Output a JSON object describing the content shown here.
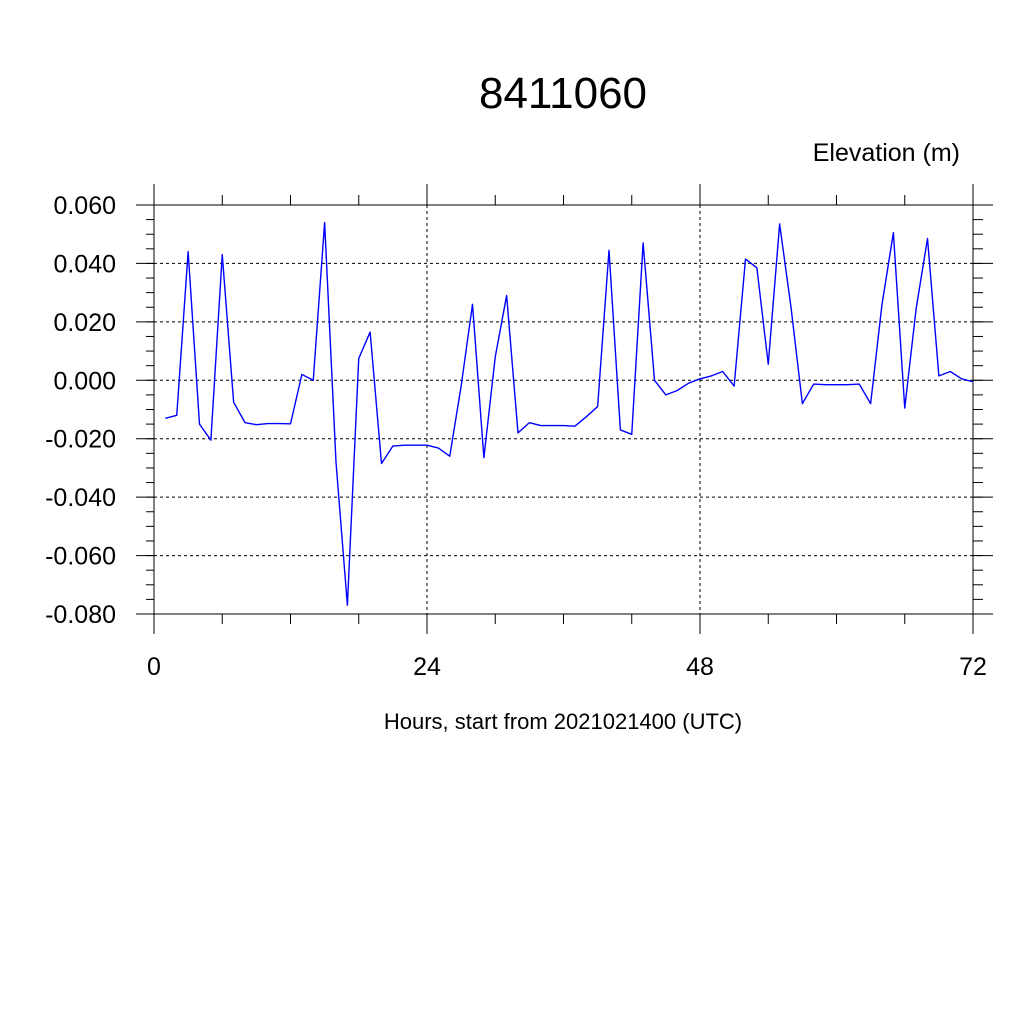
{
  "chart_data": {
    "type": "line",
    "title": "8411060",
    "ylabel": "Elevation (m)",
    "xlabel": "Hours, start from 2021021400 (UTC)",
    "xlim": [
      0,
      72
    ],
    "ylim": [
      -0.08,
      0.06
    ],
    "xticks": [
      0,
      24,
      48,
      72
    ],
    "xtick_labels": [
      "0",
      "24",
      "48",
      "72"
    ],
    "yticks": [
      -0.08,
      -0.06,
      -0.04,
      -0.02,
      0.0,
      0.02,
      0.04,
      0.06
    ],
    "ytick_labels": [
      "-0.080",
      "-0.060",
      "-0.040",
      "-0.020",
      "0.000",
      "0.020",
      "0.040",
      "0.060"
    ],
    "grid": true,
    "colors": {
      "line": "#0000ff",
      "grid": "#000000",
      "axis": "#000000"
    },
    "series": [
      {
        "x": [
          1,
          2,
          3,
          4,
          5,
          6,
          7,
          8,
          9,
          10,
          11,
          12,
          13,
          14,
          15,
          16,
          17,
          18,
          19,
          20,
          21,
          22,
          23,
          24,
          25,
          26,
          27,
          28,
          29,
          30,
          31,
          32,
          33,
          34,
          35,
          36,
          37,
          38,
          39,
          40,
          41,
          42,
          43,
          44,
          45,
          46,
          47,
          48,
          49,
          50,
          51,
          52,
          53,
          54,
          55,
          56,
          57,
          58,
          59,
          60,
          61,
          62,
          63,
          64,
          65,
          66,
          67,
          68,
          69,
          70,
          71,
          72
        ],
        "y": [
          -0.013,
          -0.012,
          0.044,
          -0.015,
          -0.0205,
          0.043,
          -0.0075,
          -0.0145,
          -0.0152,
          -0.0148,
          -0.0148,
          -0.0149,
          0.002,
          0.0,
          0.054,
          -0.028,
          -0.077,
          0.0075,
          0.0165,
          -0.0285,
          -0.0225,
          -0.0222,
          -0.0222,
          -0.0222,
          -0.0232,
          -0.026,
          -0.002,
          0.026,
          -0.0265,
          0.008,
          0.029,
          -0.018,
          -0.0145,
          -0.0155,
          -0.0155,
          -0.0155,
          -0.0157,
          -0.0125,
          -0.009,
          0.0445,
          -0.017,
          -0.0185,
          0.047,
          0.0,
          -0.005,
          -0.0035,
          -0.001,
          0.0005,
          0.0015,
          0.003,
          -0.002,
          0.0415,
          0.0385,
          0.0055,
          0.0535,
          0.025,
          -0.008,
          -0.0013,
          -0.0015,
          -0.0015,
          -0.0015,
          -0.0013,
          -0.008,
          0.026,
          0.0505,
          -0.0095,
          0.0245,
          0.0485,
          0.0015,
          0.003,
          0.0005,
          -0.0005
        ]
      }
    ]
  }
}
